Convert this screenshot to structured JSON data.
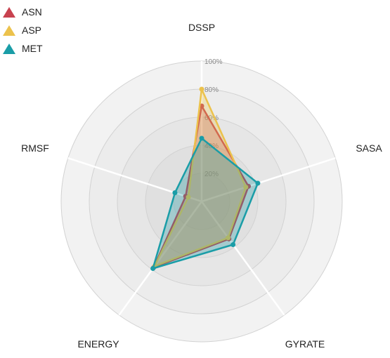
{
  "chart_data": {
    "type": "radar",
    "axes": [
      "DSSP",
      "SASA",
      "GYRATE",
      "ENERGY",
      "RMSF"
    ],
    "tick_labels": [
      "20%",
      "40%",
      "60%",
      "80%",
      "100%"
    ],
    "range": [
      0,
      100
    ],
    "series": [
      {
        "name": "ASN",
        "color": "#c8424f",
        "values": [
          68,
          35,
          33,
          58,
          12
        ]
      },
      {
        "name": "ASP",
        "color": "#ecc24c",
        "values": [
          80,
          33,
          32,
          57,
          10
        ]
      },
      {
        "name": "MET",
        "color": "#1a9da7",
        "values": [
          45,
          42,
          38,
          59,
          20
        ]
      }
    ]
  }
}
